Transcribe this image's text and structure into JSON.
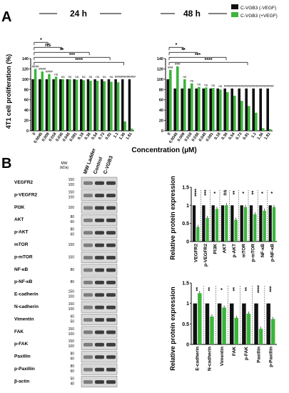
{
  "panels": {
    "a": "A",
    "b": "B"
  },
  "timepoints": [
    "24 h",
    "48 h"
  ],
  "legend": [
    "C-VGB3 (-VEGF)",
    "C-VGB3 (+VEGF)"
  ],
  "colors": {
    "minus": "#111111",
    "plus": "#3cb43c"
  },
  "chart_data": [
    {
      "type": "bar",
      "panel": "A",
      "title": "24 h",
      "ylabel": "4T1 cell proliferation (%)",
      "xlabel": "Concentration (µM)",
      "ylim": [
        0,
        140
      ],
      "yticks": [
        "0",
        "20",
        "40",
        "60",
        "80",
        "100",
        "120",
        "140"
      ],
      "categories": [
        "0",
        "0.0045",
        "0.009",
        "0.018",
        "0.036",
        "0.045",
        "0.091",
        "0.18",
        "0.36",
        "0.54",
        "0.73",
        "0.91",
        "1.1",
        "1.36",
        "1.81"
      ],
      "series": [
        {
          "name": "C-VGB3 (-VEGF)",
          "values": [
            100,
            100,
            100,
            100,
            100,
            100,
            100,
            100,
            100,
            100,
            100,
            100,
            100,
            100,
            100
          ]
        },
        {
          "name": "C-VGB3 (+VEGF)",
          "values": [
            120,
            115,
            110,
            105,
            100,
            100,
            99,
            98,
            97,
            97,
            96,
            95,
            94,
            18,
            4
          ]
        }
      ],
      "annotations": [
        "####",
        "####",
        "####",
        "ns",
        "ns",
        "ns",
        "ns",
        "ns",
        "ns",
        "ns",
        "ns",
        "ns",
        "####",
        "####",
        "####"
      ],
      "brackets": [
        "*",
        "ns",
        "**",
        "***",
        "****"
      ]
    },
    {
      "type": "bar",
      "panel": "A",
      "title": "48 h",
      "ylabel": "",
      "xlabel": "Concentration (µM)",
      "ylim": [
        0,
        140
      ],
      "yticks": [
        "0",
        "20",
        "40",
        "60",
        "80",
        "100",
        "120",
        "140"
      ],
      "categories": [
        "0",
        "0.0045",
        "0.009",
        "0.018",
        "0.036",
        "0.045",
        "0.091",
        "0.18",
        "0.36",
        "0.54",
        "0.73",
        "0.91",
        "1.1",
        "1.36",
        "1.81"
      ],
      "series": [
        {
          "name": "C-VGB3 (-VEGF)",
          "values": [
            100,
            82,
            82,
            82,
            82,
            82,
            82,
            82,
            82,
            82,
            82,
            82,
            82,
            82,
            82
          ]
        },
        {
          "name": "C-VGB3 (+VEGF)",
          "values": [
            118,
            125,
            100,
            92,
            85,
            84,
            83,
            80,
            75,
            68,
            58,
            48,
            35,
            5,
            3
          ]
        }
      ],
      "annotations": [
        "###",
        "###",
        "ns",
        "ns",
        "ns",
        "ns",
        "ns",
        "ns",
        "####",
        "####",
        "####",
        "####",
        "####",
        "####",
        "####"
      ],
      "brackets": [
        "*",
        "**",
        "***",
        "****"
      ]
    },
    {
      "type": "bar",
      "panel": "B",
      "title": "",
      "ylabel": "Relative protein expression",
      "ylim": [
        0,
        1.5
      ],
      "yticks": [
        "0",
        "0.5",
        "1",
        "1.5"
      ],
      "categories": [
        "VEGFR2",
        "p-VEGFR2",
        "PI3K",
        "AKT",
        "p-AKT",
        "mTOR",
        "p-mTOR",
        "NF-κB",
        "p-NF-κB"
      ],
      "series": [
        {
          "name": "C-VGB3 (-VEGF)",
          "values": [
            1,
            1,
            1,
            1,
            1,
            1,
            1,
            1,
            1
          ]
        },
        {
          "name": "C-VGB3 (+VEGF)",
          "values": [
            0.4,
            0.65,
            0.9,
            1.0,
            0.6,
            0.95,
            0.75,
            0.85,
            0.95
          ]
        }
      ],
      "annotations": [
        "****",
        "***",
        "*",
        "ns",
        "**",
        "*",
        "**",
        "*",
        "*"
      ]
    },
    {
      "type": "bar",
      "panel": "B",
      "title": "",
      "ylabel": "Relative protein expression",
      "ylim": [
        0,
        1.5
      ],
      "yticks": [
        "0",
        "0.5",
        "1",
        "1.5"
      ],
      "categories": [
        "E-cadherin",
        "N-cadherin",
        "Vimentin",
        "FAK",
        "p-FAK",
        "Paxillin",
        "p-Paxillin"
      ],
      "series": [
        {
          "name": "C-VGB3 (-VEGF)",
          "values": [
            1,
            1,
            1,
            1,
            1,
            1,
            1
          ]
        },
        {
          "name": "C-VGB3 (+VEGF)",
          "values": [
            1.25,
            0.68,
            0.9,
            0.65,
            0.75,
            0.38,
            0.62
          ]
        }
      ],
      "annotations": [
        "**",
        "**",
        "*",
        "**",
        "**",
        "****",
        "***"
      ]
    }
  ],
  "blot": {
    "mw_label": "MW\n(kDa)",
    "lane_labels": [
      "MW Ladder",
      "Control",
      "C-VGB3"
    ],
    "rows": [
      {
        "name": "VEGFR2",
        "mw": [
          "150",
          "100"
        ]
      },
      {
        "name": "p-VEGFR2",
        "mw": [
          "150",
          "100"
        ]
      },
      {
        "name": "PI3K",
        "mw": [
          "100"
        ]
      },
      {
        "name": "AKT",
        "mw": [
          "80",
          "60"
        ]
      },
      {
        "name": "p-AKT",
        "mw": [
          "80",
          "60"
        ]
      },
      {
        "name": "mTOR",
        "mw": [
          "150"
        ]
      },
      {
        "name": "p-mTOR",
        "mw": [
          "150"
        ]
      },
      {
        "name": "NF-κB",
        "mw": [
          "80"
        ]
      },
      {
        "name": "p-NF-κB",
        "mw": [
          "80"
        ]
      },
      {
        "name": "E-cadherin",
        "mw": [
          "150",
          "100"
        ]
      },
      {
        "name": "N-cadherin",
        "mw": [
          "150",
          "100"
        ]
      },
      {
        "name": "Vimentin",
        "mw": [
          "60",
          "50"
        ]
      },
      {
        "name": "FAK",
        "mw": [
          "150",
          "100"
        ]
      },
      {
        "name": "p-FAK",
        "mw": [
          "150",
          "100"
        ]
      },
      {
        "name": "Paxillin",
        "mw": [
          "80",
          "60"
        ]
      },
      {
        "name": "p-Paxillin",
        "mw": [
          "80",
          "60"
        ]
      },
      {
        "name": "β-actin",
        "mw": [
          "50",
          "40"
        ]
      }
    ]
  }
}
